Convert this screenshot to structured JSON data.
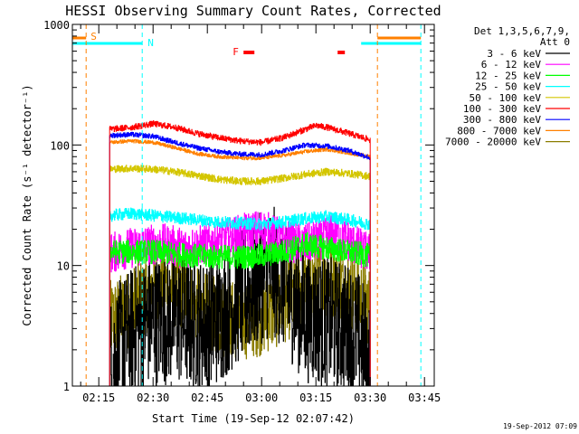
{
  "chart_data": {
    "type": "line",
    "title": "HESSI Observing Summary Count Rates, Corrected",
    "xlabel": "Start Time (19-Sep-12 02:07:42)",
    "ylabel": "Corrected Count Rate (s⁻¹ detector⁻¹)",
    "y_scale": "log",
    "ylim": [
      1,
      1000
    ],
    "xlim": [
      "02:07:42",
      "03:47:42"
    ],
    "xtick_labels": [
      "02:15",
      "02:30",
      "02:45",
      "03:00",
      "03:15",
      "03:30",
      "03:45"
    ],
    "ytick_labels": [
      "1",
      "10",
      "100",
      "1000"
    ],
    "timestamp": "19-Sep-2012 07:09",
    "legend": {
      "placement": "right",
      "title_lines": [
        "Det 1,3,5,6,7,9,",
        "Att 0"
      ],
      "entries": [
        {
          "label": "3 - 6 keV",
          "color": "#000000"
        },
        {
          "label": "6 - 12 keV",
          "color": "#ff00ff"
        },
        {
          "label": "12 - 25 keV",
          "color": "#00ff00"
        },
        {
          "label": "25 - 50 keV",
          "color": "#00ffff"
        },
        {
          "label": "50 - 100 keV",
          "color": "#d4c600"
        },
        {
          "label": "100 - 300 keV",
          "color": "#ff0000"
        },
        {
          "label": "300 - 800 keV",
          "color": "#0000ff"
        },
        {
          "label": "800 - 7000 keV",
          "color": "#ff8000"
        },
        {
          "label": "7000 - 20000 keV",
          "color": "#8b7d00"
        }
      ]
    },
    "flags": {
      "S_label": "S",
      "N_label": "N",
      "F_label": "F",
      "saa_colour": "#ff8000",
      "night_colour": "#00ffff",
      "flare_colour": "#ff0000",
      "saa_intervals": [
        [
          "02:07:42",
          "02:11:30"
        ],
        [
          "03:32:00",
          "03:44:00"
        ]
      ],
      "night_intervals": [
        [
          "02:07:42",
          "02:27:00"
        ],
        [
          "03:27:30",
          "03:44:00"
        ]
      ],
      "flare_intervals": [
        [
          "02:55:00",
          "02:58:00"
        ],
        [
          "03:21:00",
          "03:23:00"
        ]
      ],
      "saa_marker_times": [
        "02:11:30",
        "03:32:00"
      ],
      "night_marker_times": [
        "02:27:00",
        "03:44:00"
      ]
    },
    "series": [
      {
        "name": "3 - 6 keV",
        "color": "#000000",
        "noise": 0.55,
        "x": [
          "02:18",
          "02:21",
          "02:24",
          "02:27",
          "02:30",
          "02:33",
          "02:36",
          "02:39",
          "02:42",
          "02:45",
          "02:48",
          "02:51",
          "02:54",
          "02:57",
          "03:00",
          "03:03",
          "03:06",
          "03:09",
          "03:12",
          "03:15",
          "03:18",
          "03:21",
          "03:24",
          "03:27",
          "03:30"
        ],
        "values": [
          1.5,
          2.2,
          2.8,
          3.2,
          3.5,
          3.6,
          3.7,
          3.4,
          3.2,
          3.3,
          3.6,
          4.5,
          5.5,
          6.5,
          8.0,
          9.0,
          7.0,
          5.0,
          3.8,
          3.6,
          3.4,
          3.2,
          3.0,
          2.5,
          1.5
        ]
      },
      {
        "name": "6 - 12 keV",
        "color": "#ff00ff",
        "noise": 0.17,
        "x": [
          "02:18",
          "02:21",
          "02:24",
          "02:27",
          "02:30",
          "02:33",
          "02:36",
          "02:39",
          "02:42",
          "02:45",
          "02:48",
          "02:51",
          "02:54",
          "02:57",
          "03:00",
          "03:03",
          "03:06",
          "03:09",
          "03:12",
          "03:15",
          "03:18",
          "03:21",
          "03:24",
          "03:27",
          "03:30"
        ],
        "values": [
          12.5,
          13.5,
          14.0,
          14.5,
          15.0,
          15.0,
          14.5,
          14.0,
          14.5,
          15.0,
          16.0,
          17.0,
          18.0,
          19.0,
          20.0,
          18.0,
          16.5,
          15.5,
          15.0,
          16.0,
          17.0,
          19.0,
          16.0,
          14.0,
          12.5
        ]
      },
      {
        "name": "12 - 25 keV",
        "color": "#00ff00",
        "noise": 0.1,
        "x": [
          "02:18",
          "02:24",
          "02:30",
          "02:36",
          "02:42",
          "02:48",
          "02:54",
          "03:00",
          "03:06",
          "03:09",
          "03:12",
          "03:15",
          "03:18",
          "03:21",
          "03:24",
          "03:27",
          "03:30"
        ],
        "values": [
          13.0,
          13.0,
          13.0,
          12.5,
          12.0,
          11.8,
          11.8,
          12.0,
          13.0,
          14.0,
          15.0,
          14.5,
          14.0,
          13.5,
          13.0,
          12.5,
          12.0
        ]
      },
      {
        "name": "25 - 50 keV",
        "color": "#00ffff",
        "noise": 0.05,
        "x": [
          "02:18",
          "02:24",
          "02:30",
          "02:36",
          "02:42",
          "02:48",
          "02:54",
          "03:00",
          "03:06",
          "03:12",
          "03:18",
          "03:24",
          "03:30"
        ],
        "values": [
          26.0,
          27.0,
          26.0,
          25.0,
          24.0,
          23.0,
          22.5,
          22.0,
          23.0,
          24.5,
          25.5,
          24.0,
          22.0
        ]
      },
      {
        "name": "50 - 100 keV",
        "color": "#d4c600",
        "noise": 0.03,
        "x": [
          "02:18",
          "02:24",
          "02:30",
          "02:36",
          "02:42",
          "02:48",
          "02:54",
          "03:00",
          "03:06",
          "03:12",
          "03:18",
          "03:24",
          "03:30"
        ],
        "values": [
          63.0,
          64.0,
          63.0,
          60.0,
          56.0,
          52.0,
          50.0,
          50.0,
          53.0,
          57.0,
          60.0,
          58.0,
          55.0
        ]
      },
      {
        "name": "100 - 300 keV",
        "color": "#ff0000",
        "noise": 0.025,
        "x": [
          "02:18",
          "02:24",
          "02:30",
          "02:36",
          "02:42",
          "02:48",
          "02:54",
          "03:00",
          "03:06",
          "03:12",
          "03:15",
          "03:18",
          "03:24",
          "03:30"
        ],
        "values": [
          135.0,
          140.0,
          150.0,
          140.0,
          125.0,
          115.0,
          108.0,
          105.0,
          115.0,
          135.0,
          145.0,
          140.0,
          125.0,
          110.0
        ]
      },
      {
        "name": "300 - 800 keV",
        "color": "#0000ff",
        "noise": 0.02,
        "x": [
          "02:18",
          "02:24",
          "02:30",
          "02:36",
          "02:42",
          "02:48",
          "02:54",
          "03:00",
          "03:06",
          "03:12",
          "03:18",
          "03:24",
          "03:30"
        ],
        "values": [
          120.0,
          122.0,
          118.0,
          105.0,
          95.0,
          88.0,
          84.0,
          83.0,
          90.0,
          100.0,
          98.0,
          90.0,
          78.0
        ]
      },
      {
        "name": "800 - 7000 keV",
        "color": "#ff8000",
        "noise": 0.015,
        "x": [
          "02:18",
          "02:24",
          "02:30",
          "02:36",
          "02:42",
          "02:48",
          "02:54",
          "03:00",
          "03:06",
          "03:12",
          "03:18",
          "03:24",
          "03:30"
        ],
        "values": [
          105.0,
          108.0,
          105.0,
          95.0,
          85.0,
          80.0,
          78.0,
          78.0,
          82.0,
          88.0,
          92.0,
          86.0,
          80.0
        ]
      },
      {
        "name": "7000 - 20000 keV",
        "color": "#8b7d00",
        "noise": 0.33,
        "x": [
          "02:18",
          "02:21",
          "02:24",
          "02:27",
          "02:30",
          "02:33",
          "02:36",
          "02:39",
          "02:42",
          "02:45",
          "02:48",
          "02:51",
          "02:54",
          "02:57",
          "03:00",
          "03:03",
          "03:06",
          "03:09",
          "03:12",
          "03:15",
          "03:18",
          "03:21",
          "03:24",
          "03:27",
          "03:30"
        ],
        "values": [
          3.5,
          4.0,
          4.5,
          5.5,
          6.5,
          7.0,
          6.5,
          5.5,
          4.5,
          4.0,
          3.8,
          3.6,
          3.5,
          3.6,
          3.8,
          4.2,
          4.8,
          5.5,
          6.5,
          7.5,
          8.0,
          7.5,
          6.5,
          5.5,
          4.5
        ]
      }
    ]
  }
}
